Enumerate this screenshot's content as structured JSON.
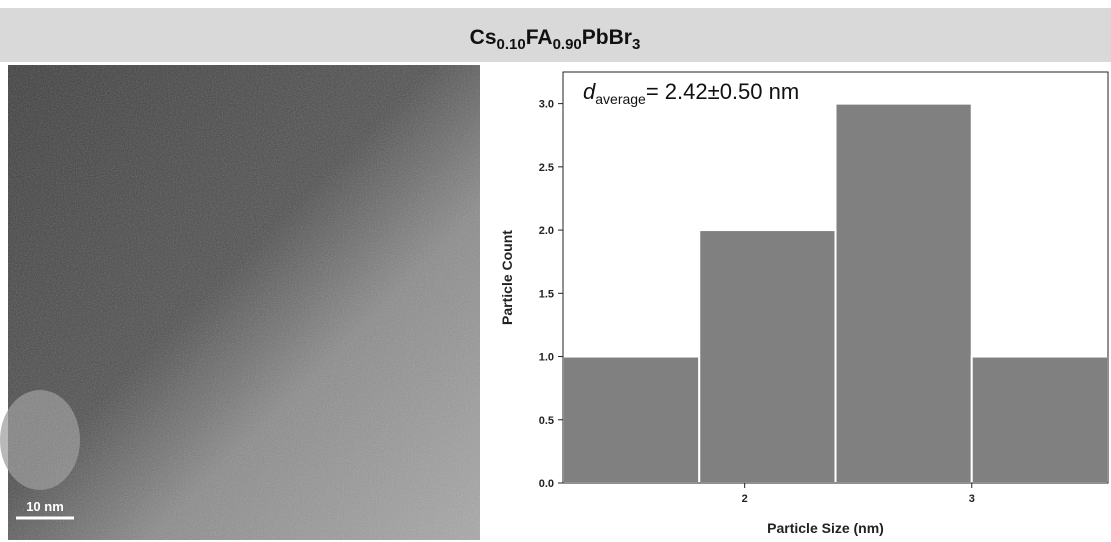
{
  "header": {
    "parts": [
      "Cs",
      "0.10",
      "FA",
      "0.90",
      "PbBr",
      "3"
    ]
  },
  "image": {
    "scale_bar_label": "10 nm"
  },
  "chart_data": {
    "type": "histogram",
    "annotation": {
      "symbol": "d",
      "subscript": "average",
      "text": "= 2.42±0.50 nm"
    },
    "x_label": "Particle Size (nm)",
    "y_label": "Particle Count",
    "bins": [
      1.2,
      1.8,
      2.4,
      3.0,
      3.6
    ],
    "values": [
      1,
      2,
      3,
      1
    ],
    "color": "#808080",
    "xlim": [
      1.2,
      3.6
    ],
    "ylim": [
      0,
      3.25
    ],
    "xticks": [
      2,
      3
    ],
    "yticks": [
      {
        "value": 0,
        "label": "0.0"
      },
      {
        "value": 0.5,
        "label": "0.5"
      },
      {
        "value": 1,
        "label": "1.0"
      },
      {
        "value": 1.5,
        "label": "1.5"
      },
      {
        "value": 2,
        "label": "2.0"
      },
      {
        "value": 2.5,
        "label": "2.5"
      },
      {
        "value": 3,
        "label": "3.0"
      }
    ]
  }
}
